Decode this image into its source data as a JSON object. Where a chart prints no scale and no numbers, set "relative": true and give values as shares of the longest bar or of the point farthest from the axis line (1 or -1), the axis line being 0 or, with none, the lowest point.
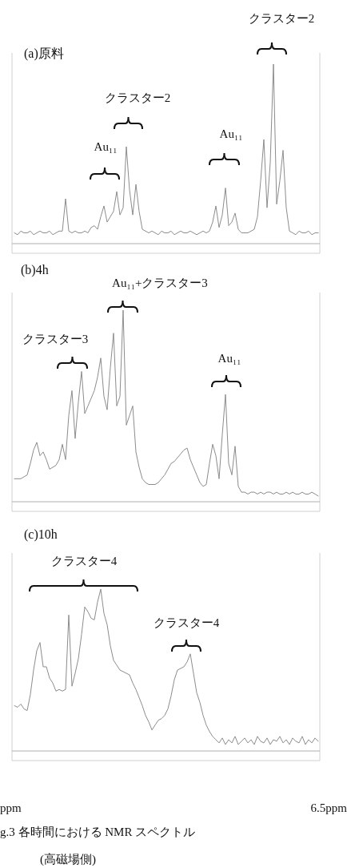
{
  "chart_data": [
    {
      "type": "line",
      "relative": true,
      "title": "(a)原料",
      "color": "#8c8c8c",
      "categories": [
        null,
        null,
        null,
        null,
        null,
        null,
        null,
        null,
        null,
        null,
        null,
        null,
        null,
        null,
        null,
        null,
        null,
        null,
        null,
        null,
        null,
        null,
        null,
        null,
        null,
        null,
        null,
        null,
        null,
        null,
        null,
        null,
        null,
        null,
        null,
        null,
        null,
        null,
        null,
        null,
        null,
        null,
        null,
        null,
        null,
        null,
        null,
        null,
        null,
        null,
        null,
        null,
        null,
        null,
        null,
        null,
        null,
        null,
        null,
        null,
        null,
        null,
        null,
        null,
        null,
        null,
        null,
        null,
        null,
        null,
        null,
        null,
        null,
        null,
        null,
        null,
        null,
        null,
        null,
        null,
        null,
        null,
        null,
        null,
        null,
        null,
        null,
        null,
        null,
        null,
        null,
        null,
        null,
        null,
        null,
        null
      ],
      "values": [
        0.06,
        0.05,
        0.07,
        0.06,
        0.06,
        0.07,
        0.05,
        0.06,
        0.07,
        0.06,
        0.06,
        0.07,
        0.05,
        0.06,
        0.07,
        0.07,
        0.25,
        0.07,
        0.06,
        0.07,
        0.06,
        0.06,
        0.07,
        0.06,
        0.09,
        0.1,
        0.08,
        0.15,
        0.21,
        0.12,
        0.15,
        0.18,
        0.29,
        0.16,
        0.2,
        0.54,
        0.3,
        0.16,
        0.33,
        0.18,
        0.08,
        0.07,
        0.06,
        0.07,
        0.06,
        0.05,
        0.07,
        0.06,
        0.06,
        0.07,
        0.05,
        0.06,
        0.07,
        0.06,
        0.06,
        0.07,
        0.06,
        0.05,
        0.06,
        0.07,
        0.06,
        0.07,
        0.12,
        0.21,
        0.09,
        0.16,
        0.31,
        0.1,
        0.12,
        0.17,
        0.08,
        0.06,
        0.06,
        0.06,
        0.07,
        0.08,
        0.15,
        0.35,
        0.58,
        0.2,
        0.45,
        1.0,
        0.22,
        0.35,
        0.52,
        0.2,
        0.07,
        0.06,
        0.05,
        0.07,
        0.06,
        0.06,
        0.07,
        0.05,
        0.06,
        0.06
      ],
      "annotations": [
        "クラスター2",
        "クラスター2",
        "Au₁₁",
        "Au₁₁"
      ]
    },
    {
      "type": "line",
      "relative": true,
      "title": "(b)4h",
      "color": "#8c8c8c",
      "categories": [
        null,
        null,
        null,
        null,
        null,
        null,
        null,
        null,
        null,
        null,
        null,
        null,
        null,
        null,
        null,
        null,
        null,
        null,
        null,
        null,
        null,
        null,
        null,
        null,
        null,
        null,
        null,
        null,
        null,
        null,
        null,
        null,
        null,
        null,
        null,
        null,
        null,
        null,
        null,
        null,
        null,
        null,
        null,
        null,
        null,
        null,
        null,
        null,
        null,
        null,
        null,
        null,
        null,
        null,
        null,
        null,
        null,
        null,
        null,
        null,
        null,
        null,
        null,
        null,
        null,
        null,
        null,
        null,
        null,
        null,
        null,
        null,
        null,
        null,
        null,
        null,
        null,
        null,
        null,
        null,
        null,
        null,
        null,
        null,
        null,
        null,
        null,
        null,
        null,
        null,
        null,
        null,
        null,
        null,
        null,
        null
      ],
      "values": [
        0.12,
        0.12,
        0.12,
        0.13,
        0.14,
        0.2,
        0.27,
        0.31,
        0.24,
        0.26,
        0.22,
        0.17,
        0.18,
        0.19,
        0.22,
        0.3,
        0.22,
        0.45,
        0.58,
        0.33,
        0.52,
        0.68,
        0.46,
        0.5,
        0.54,
        0.58,
        0.65,
        0.75,
        0.55,
        0.48,
        0.7,
        0.88,
        0.5,
        0.55,
        1.0,
        0.4,
        0.45,
        0.5,
        0.26,
        0.18,
        0.12,
        0.1,
        0.09,
        0.09,
        0.09,
        0.1,
        0.12,
        0.14,
        0.17,
        0.2,
        0.21,
        0.23,
        0.25,
        0.27,
        0.28,
        0.22,
        0.18,
        0.14,
        0.1,
        0.08,
        0.09,
        0.2,
        0.3,
        0.24,
        0.12,
        0.35,
        0.56,
        0.2,
        0.14,
        0.29,
        0.08,
        0.05,
        0.05,
        0.04,
        0.05,
        0.05,
        0.04,
        0.05,
        0.04,
        0.05,
        0.05,
        0.04,
        0.05,
        0.04,
        0.04,
        0.05,
        0.04,
        0.05,
        0.04,
        0.04,
        0.05,
        0.04,
        0.04,
        0.05,
        0.04,
        0.03
      ],
      "annotations": [
        "Au₁₁+クラスター3",
        "クラスター3",
        "Au₁₁"
      ]
    },
    {
      "type": "line",
      "relative": true,
      "title": "(c)10h",
      "color": "#8c8c8c",
      "categories": [
        null,
        null,
        null,
        null,
        null,
        null,
        null,
        null,
        null,
        null,
        null,
        null,
        null,
        null,
        null,
        null,
        null,
        null,
        null,
        null,
        null,
        null,
        null,
        null,
        null,
        null,
        null,
        null,
        null,
        null,
        null,
        null,
        null,
        null,
        null,
        null,
        null,
        null,
        null,
        null,
        null,
        null,
        null,
        null,
        null,
        null,
        null,
        null,
        null,
        null,
        null,
        null,
        null,
        null,
        null,
        null,
        null,
        null,
        null,
        null,
        null,
        null,
        null,
        null,
        null,
        null,
        null,
        null,
        null,
        null,
        null,
        null,
        null,
        null,
        null,
        null,
        null,
        null,
        null,
        null,
        null,
        null,
        null,
        null,
        null,
        null,
        null,
        null,
        null,
        null,
        null,
        null,
        null,
        null,
        null,
        null
      ],
      "values": [
        0.28,
        0.27,
        0.29,
        0.26,
        0.25,
        0.35,
        0.5,
        0.62,
        0.67,
        0.52,
        0.52,
        0.45,
        0.42,
        0.37,
        0.38,
        0.37,
        0.38,
        0.84,
        0.4,
        0.48,
        0.57,
        0.72,
        0.89,
        0.86,
        0.82,
        0.81,
        0.92,
        1.0,
        0.85,
        0.78,
        0.65,
        0.56,
        0.53,
        0.5,
        0.49,
        0.48,
        0.47,
        0.42,
        0.38,
        0.33,
        0.28,
        0.22,
        0.18,
        0.13,
        0.16,
        0.19,
        0.2,
        0.22,
        0.26,
        0.34,
        0.44,
        0.5,
        0.51,
        0.52,
        0.55,
        0.6,
        0.48,
        0.36,
        0.3,
        0.22,
        0.16,
        0.12,
        0.09,
        0.07,
        0.05,
        0.08,
        0.04,
        0.07,
        0.05,
        0.09,
        0.04,
        0.06,
        0.08,
        0.05,
        0.07,
        0.04,
        0.09,
        0.06,
        0.05,
        0.08,
        0.04,
        0.07,
        0.06,
        0.09,
        0.05,
        0.07,
        0.04,
        0.08,
        0.06,
        0.05,
        0.09,
        0.04,
        0.07,
        0.05,
        0.08,
        0.06
      ],
      "annotations": [
        "クラスター4",
        "クラスター4",
        "ppm",
        "6.5ppm",
        "g.3 各時間における NMR スペクトル",
        "(高磁場側)"
      ]
    }
  ]
}
